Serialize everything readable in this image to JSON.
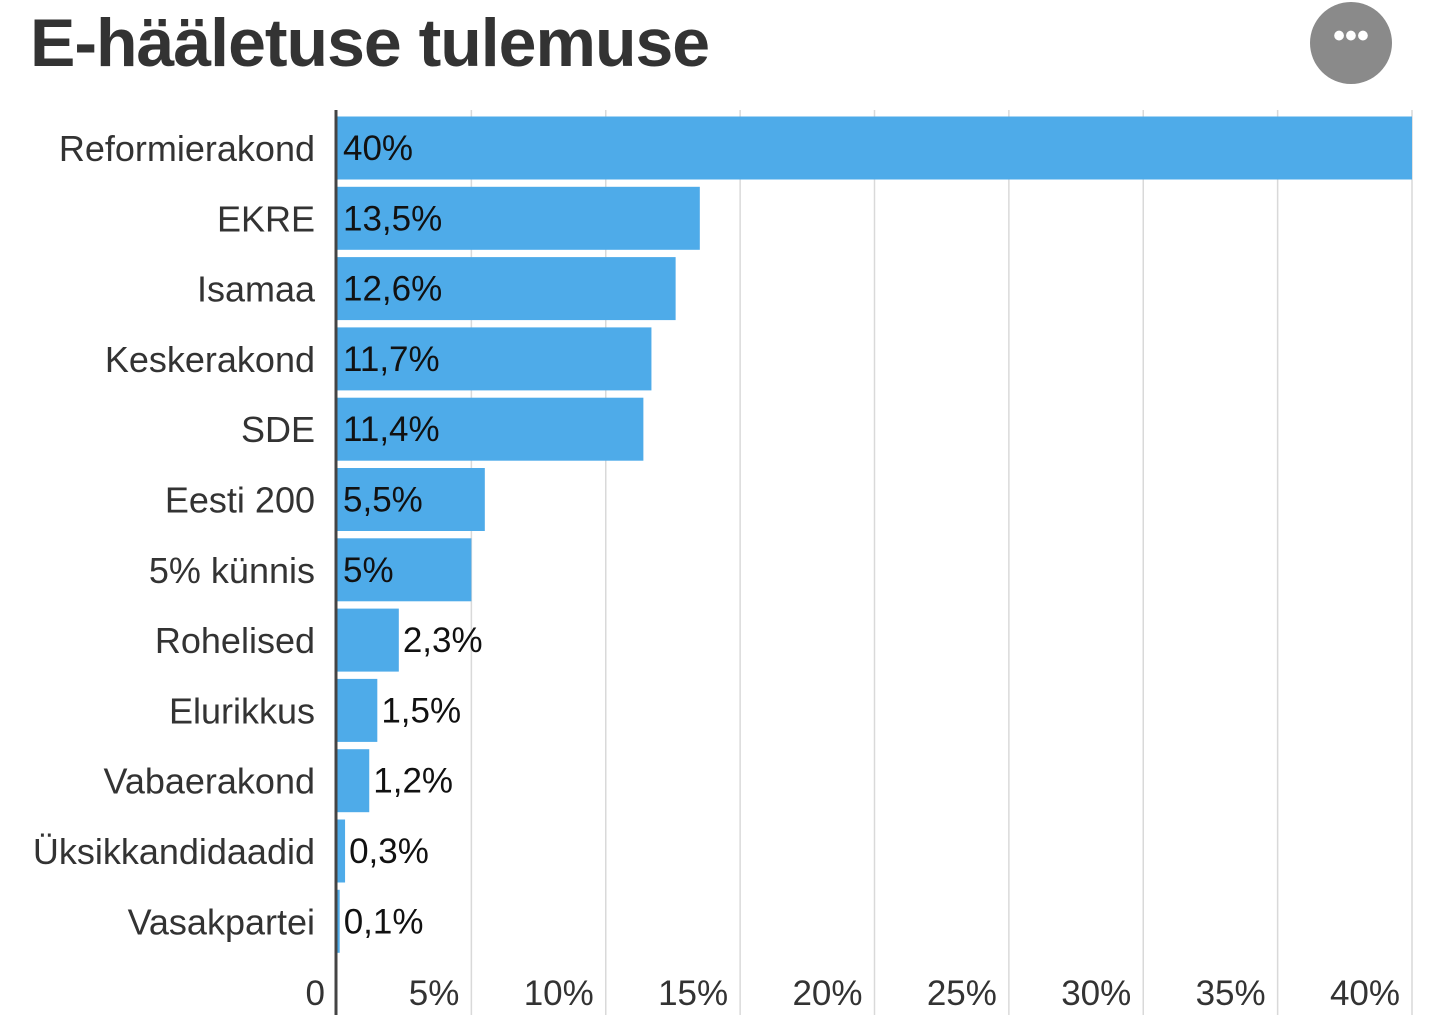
{
  "header": {
    "title": "E-hääletuse tulemuse",
    "menu_icon": "more-horizontal-icon",
    "menu_glyph": "•••"
  },
  "colors": {
    "bar": "#4eabe9",
    "grid": "#d9d9d9",
    "axis": "#444444",
    "label_text": "#333333",
    "value_text": "#111111",
    "menu_bg": "#8a8a8a"
  },
  "chart_data": {
    "type": "bar",
    "orientation": "horizontal",
    "title": "E-hääletuse tulemuse",
    "xlabel": "",
    "ylabel": "",
    "xlim": [
      0,
      40
    ],
    "grid": true,
    "legend": "none",
    "categories": [
      "Reformierakond",
      "EKRE",
      "Isamaa",
      "Keskerakond",
      "SDE",
      "Eesti 200",
      "5% künnis",
      "Rohelised",
      "Elurikkus",
      "Vabaerakond",
      "Üksikkandidaadid",
      "Vasakpartei"
    ],
    "values": [
      40,
      13.5,
      12.6,
      11.7,
      11.4,
      5.5,
      5,
      2.3,
      1.5,
      1.2,
      0.3,
      0.1
    ],
    "data_labels": [
      "40%",
      "13,5%",
      "12,6%",
      "11,7%",
      "11,4%",
      "5,5%",
      "5%",
      "2,3%",
      "1,5%",
      "1,2%",
      "0,3%",
      "0,1%"
    ],
    "x_ticks": [
      0,
      5,
      10,
      15,
      20,
      25,
      30,
      35,
      40
    ],
    "x_tick_labels": [
      "0",
      "5%",
      "10%",
      "15%",
      "20%",
      "25%",
      "30%",
      "35%",
      "40%"
    ]
  }
}
